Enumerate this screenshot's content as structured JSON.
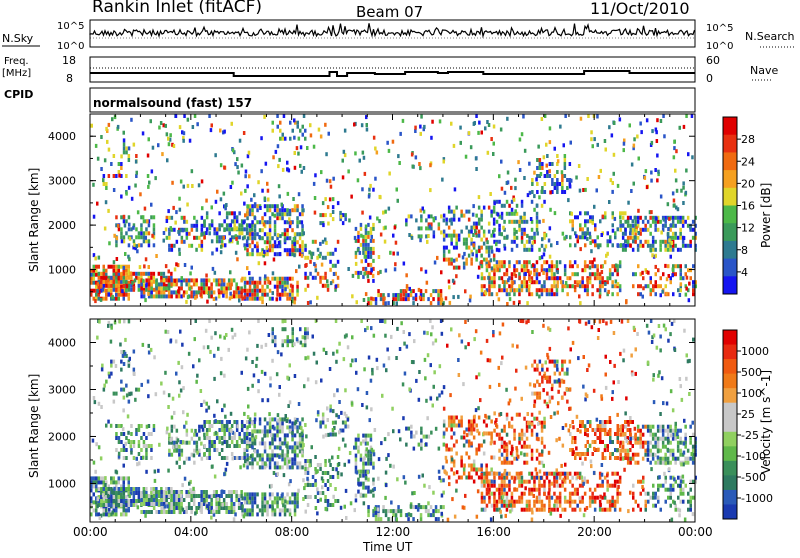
{
  "header": {
    "station": "Rankin Inlet (fitACF)",
    "beam": "Beam 07",
    "date": "11/Oct/2010"
  },
  "noise_panel": {
    "left_label": "N.Sky",
    "right_label": "N.Search",
    "right_ticks": [
      "10^5",
      "10^0"
    ],
    "left_ticks": [
      "10^5",
      "10^0"
    ]
  },
  "freq_panel": {
    "left_label_top": "Freq.",
    "left_label_bottom": "[MHz]",
    "left_ticks": [
      "18",
      "8"
    ],
    "right_label": "Nave",
    "right_ticks": [
      "60",
      "0"
    ]
  },
  "cpid": {
    "label": "CPID",
    "value": "normalsound (fast) 157"
  },
  "chart_data": [
    {
      "type": "heatmap",
      "name": "power",
      "ylabel": "Slant Range [km]",
      "ylim": [
        180,
        4500
      ],
      "yticks": [
        1000,
        2000,
        3000,
        4000
      ],
      "x_ticks": [
        "00:00",
        "04:00",
        "08:00",
        "12:00",
        "16:00",
        "20:00",
        "00:00"
      ],
      "xlim_hours": [
        0,
        24
      ],
      "colorbar": {
        "label": "Power [dB]",
        "ticks": [
          "4",
          "8",
          "12",
          "16",
          "20",
          "24",
          "28"
        ],
        "colors": [
          "#1515f0",
          "#2a55c8",
          "#2e7a90",
          "#3a9a5a",
          "#4cb848",
          "#e0d52a",
          "#f5a020",
          "#f06a10",
          "#e83010",
          "#e00000"
        ]
      }
    },
    {
      "type": "heatmap",
      "name": "velocity",
      "ylabel": "Slant Range [km]",
      "ylim": [
        180,
        4500
      ],
      "yticks": [
        1000,
        2000,
        3000,
        4000
      ],
      "x_ticks": [
        "00:00",
        "04:00",
        "08:00",
        "12:00",
        "16:00",
        "20:00",
        "00:00"
      ],
      "xlabel": "Time UT",
      "xlim_hours": [
        0,
        24
      ],
      "colorbar": {
        "label": "Velocity [m s^-1]",
        "ticks": [
          "1000",
          "500",
          "100",
          "25",
          "-25",
          "-100",
          "-500",
          "-1000"
        ],
        "colors": [
          "#1a3ab0",
          "#2a5ab8",
          "#2e7a60",
          "#3a8f5a",
          "#5fb84a",
          "#90d060",
          "#c8c8c8",
          "#c8c8c8",
          "#f0a040",
          "#f07a18",
          "#f05a10",
          "#e82a10",
          "#e00000"
        ]
      }
    }
  ]
}
